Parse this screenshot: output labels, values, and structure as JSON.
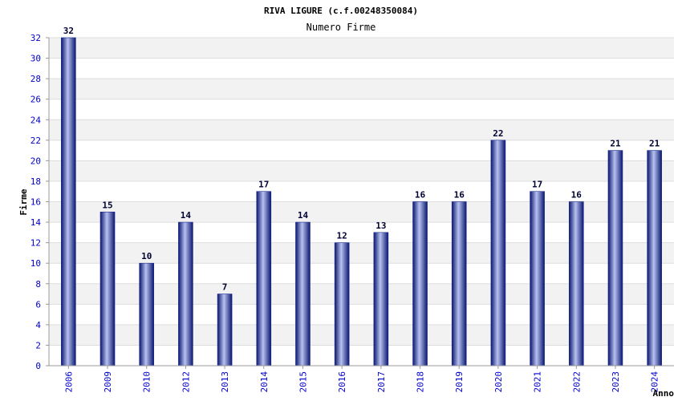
{
  "chart_data": {
    "type": "bar",
    "title": "RIVA LIGURE (c.f.00248350084)",
    "subtitle": "Numero Firme",
    "xlabel": "Anno",
    "ylabel": "Firme",
    "categories": [
      "2006",
      "2009",
      "2010",
      "2012",
      "2013",
      "2014",
      "2015",
      "2016",
      "2017",
      "2018",
      "2019",
      "2020",
      "2021",
      "2022",
      "2023",
      "2024"
    ],
    "values": [
      32,
      15,
      10,
      14,
      7,
      17,
      14,
      12,
      13,
      16,
      16,
      22,
      17,
      16,
      21,
      21
    ],
    "ylim": [
      0,
      32
    ],
    "yticks": [
      0,
      2,
      4,
      6,
      8,
      10,
      12,
      14,
      16,
      18,
      20,
      22,
      24,
      26,
      28,
      30,
      32
    ],
    "grid": true,
    "bar_color": "#1a2a8c",
    "band_color": "#f2f2f2"
  }
}
